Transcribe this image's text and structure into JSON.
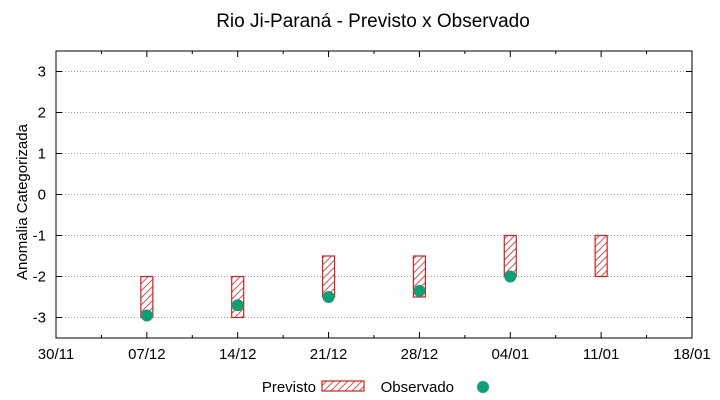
{
  "chart_data": {
    "type": "floating-bar-with-markers",
    "title": "Rio Ji-Paraná - Previsto x Observado",
    "xlabel": "",
    "ylabel": "Anomalia Categorizada",
    "x_ticks": [
      "30/11",
      "07/12",
      "14/12",
      "21/12",
      "28/12",
      "04/01",
      "11/01",
      "18/01"
    ],
    "y_ticks": [
      3,
      2,
      1,
      0,
      -1,
      -2,
      -3
    ],
    "ylim": [
      -3.5,
      3.5
    ],
    "grid": true,
    "legend_placement": "bottom",
    "series": [
      {
        "name": "Previsto",
        "kind": "range-bar",
        "bar_color": "#cc2222",
        "points": [
          {
            "x": "07/12",
            "low": -3,
            "high": -2
          },
          {
            "x": "14/12",
            "low": -3,
            "high": -2
          },
          {
            "x": "21/12",
            "low": -2.5,
            "high": -1.5
          },
          {
            "x": "28/12",
            "low": -2.5,
            "high": -1.5
          },
          {
            "x": "04/01",
            "low": -2,
            "high": -1
          },
          {
            "x": "11/01",
            "low": -2,
            "high": -1
          }
        ]
      },
      {
        "name": "Observado",
        "kind": "point",
        "marker_color": "#0e9e78",
        "points": [
          {
            "x": "07/12",
            "y": -2.95
          },
          {
            "x": "14/12",
            "y": -2.7
          },
          {
            "x": "21/12",
            "y": -2.5
          },
          {
            "x": "28/12",
            "y": -2.35
          },
          {
            "x": "04/01",
            "y": -2.0
          }
        ]
      }
    ]
  }
}
